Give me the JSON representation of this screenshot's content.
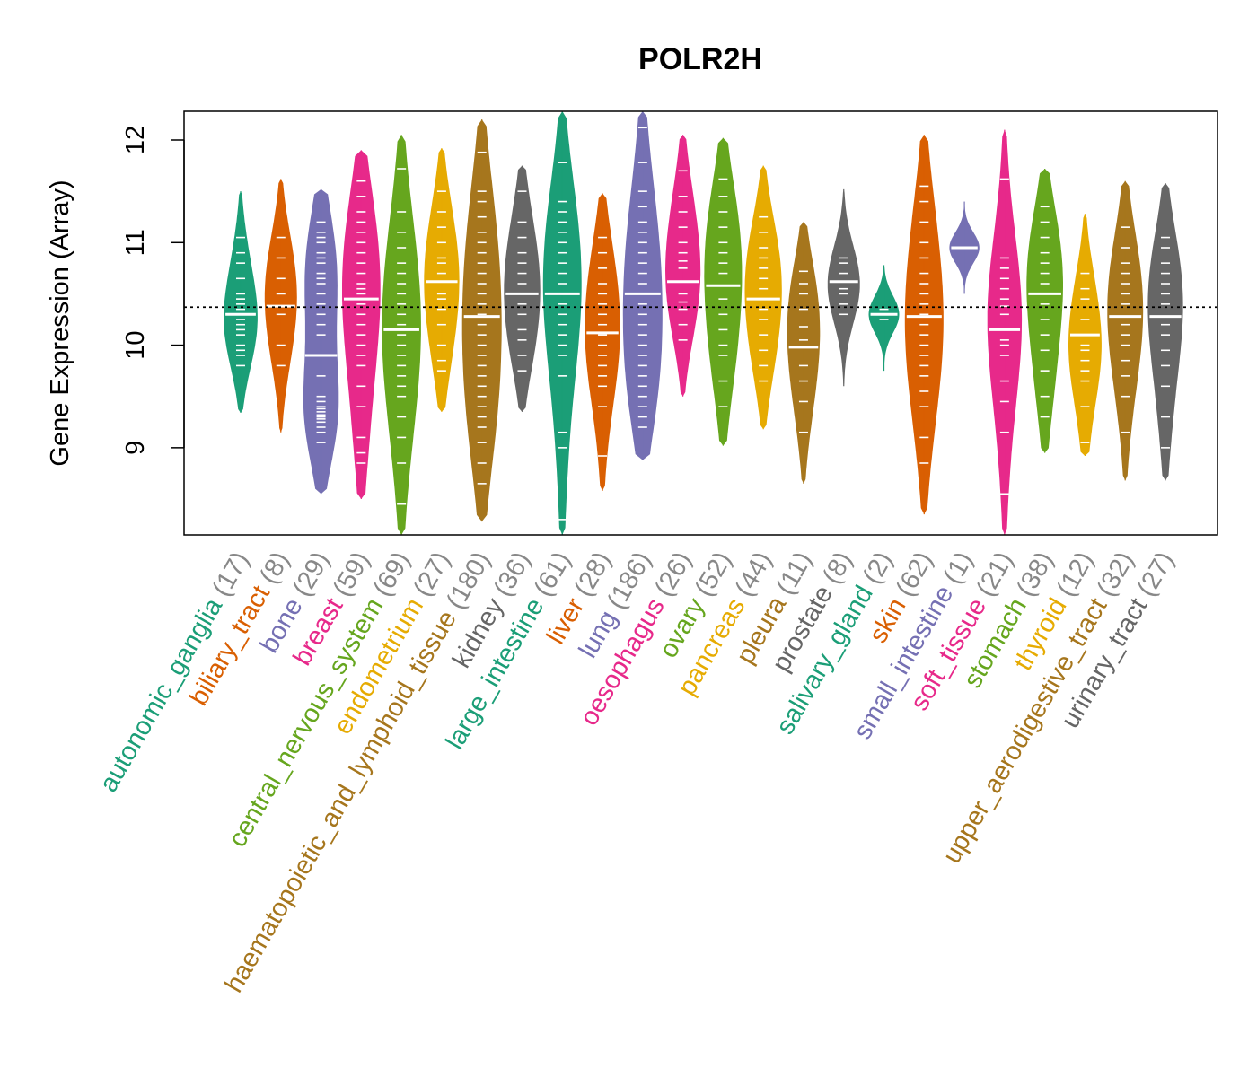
{
  "chart_data": {
    "type": "beanplot",
    "title": "POLR2H",
    "ylabel": "Gene Expression (Array)",
    "xlabel": "",
    "ylim": [
      8.15,
      12.28
    ],
    "yticks": [
      9,
      10,
      11,
      12
    ],
    "reference_line": 10.37,
    "categories": [
      {
        "name": "autonomic_ganglia",
        "n": 17,
        "color": "#1B9E77",
        "label": "autonomic_ganglia (17)",
        "median": 10.3,
        "min": 9.34,
        "max": 11.5,
        "values": [
          9.8,
          9.9,
          10.0,
          10.1,
          10.15,
          10.25,
          10.3,
          10.35,
          10.45,
          10.5,
          10.65,
          10.8,
          10.9,
          11.05,
          9.95,
          10.2,
          10.4
        ]
      },
      {
        "name": "biliary_tract",
        "n": 8,
        "color": "#D95F02",
        "label": "biliary_tract (8)",
        "median": 10.38,
        "min": 9.15,
        "max": 11.62,
        "values": [
          9.8,
          10.0,
          10.3,
          10.5,
          10.65,
          10.85,
          11.05,
          10.38
        ]
      },
      {
        "name": "bone",
        "n": 29,
        "color": "#7570B3",
        "label": "bone (29)",
        "median": 9.9,
        "min": 8.55,
        "max": 11.52,
        "values": [
          9.05,
          9.15,
          9.25,
          9.3,
          9.35,
          9.4,
          9.5,
          9.7,
          9.9,
          10.1,
          10.3,
          10.5,
          10.6,
          10.7,
          10.8,
          10.9,
          11.0,
          11.1,
          9.2,
          9.28,
          9.32,
          9.38,
          9.45,
          10.2,
          10.4,
          10.65,
          10.85,
          11.05,
          11.2
        ]
      },
      {
        "name": "breast",
        "n": 59,
        "color": "#E7298A",
        "label": "breast (59)",
        "median": 10.45,
        "min": 8.5,
        "max": 11.9,
        "values": [
          8.85,
          8.95,
          9.1,
          9.4,
          9.6,
          9.8,
          9.9,
          10.0,
          10.1,
          10.2,
          10.3,
          10.4,
          10.5,
          10.55,
          10.6,
          10.7,
          10.8,
          10.9,
          11.0,
          11.1,
          11.2,
          11.3,
          11.45,
          11.6
        ]
      },
      {
        "name": "central_nervous_system",
        "n": 69,
        "color": "#66A61E",
        "label": "central_nervous_system (69)",
        "median": 10.15,
        "min": 8.15,
        "max": 12.05,
        "values": [
          8.45,
          8.85,
          9.1,
          9.3,
          9.5,
          9.6,
          9.7,
          9.8,
          9.9,
          10.0,
          10.1,
          10.2,
          10.3,
          10.4,
          10.5,
          10.6,
          10.7,
          10.8,
          10.95,
          11.1,
          11.3,
          11.72
        ]
      },
      {
        "name": "endometrium",
        "n": 27,
        "color": "#E6AB02",
        "label": "endometrium (27)",
        "median": 10.62,
        "min": 9.35,
        "max": 11.92,
        "values": [
          9.75,
          9.85,
          10.0,
          10.2,
          10.35,
          10.5,
          10.62,
          10.7,
          10.85,
          11.0,
          11.15,
          11.3,
          11.5,
          10.45,
          10.8
        ]
      },
      {
        "name": "haematopoietic_and_lymphoid_tissue",
        "n": 180,
        "color": "#A6761D",
        "label": "haematopoietic_and_lymphoid_tissue (180)",
        "median": 10.28,
        "min": 8.28,
        "max": 12.2,
        "values": [
          8.65,
          8.85,
          9.05,
          9.2,
          9.3,
          9.4,
          9.5,
          9.6,
          9.7,
          9.8,
          9.9,
          10.0,
          10.1,
          10.2,
          10.3,
          10.4,
          10.5,
          10.6,
          10.7,
          10.8,
          10.9,
          11.0,
          11.1,
          11.25,
          11.4,
          11.5,
          11.88
        ]
      },
      {
        "name": "kidney",
        "n": 36,
        "color": "#666666",
        "label": "kidney (36)",
        "median": 10.5,
        "min": 9.35,
        "max": 11.75,
        "values": [
          9.75,
          9.9,
          10.05,
          10.15,
          10.3,
          10.4,
          10.5,
          10.6,
          10.7,
          10.8,
          10.9,
          11.05,
          11.2,
          11.5
        ]
      },
      {
        "name": "large_intestine",
        "n": 61,
        "color": "#1B9E77",
        "label": "large_intestine (61)",
        "median": 10.5,
        "min": 8.15,
        "max": 12.28,
        "values": [
          8.3,
          9.0,
          9.15,
          9.7,
          9.9,
          10.0,
          10.1,
          10.2,
          10.3,
          10.4,
          10.5,
          10.6,
          10.7,
          10.8,
          10.9,
          11.0,
          11.1,
          11.2,
          11.3,
          11.4,
          11.78
        ]
      },
      {
        "name": "liver",
        "n": 28,
        "color": "#D95F02",
        "label": "liver (28)",
        "median": 10.12,
        "min": 8.58,
        "max": 11.48,
        "values": [
          8.92,
          9.4,
          9.6,
          9.7,
          9.8,
          9.9,
          10.0,
          10.1,
          10.2,
          10.3,
          10.4,
          10.5,
          10.6,
          10.75,
          10.9,
          11.05
        ]
      },
      {
        "name": "lung",
        "n": 186,
        "color": "#7570B3",
        "label": "lung (186)",
        "median": 10.5,
        "min": 8.88,
        "max": 12.28,
        "values": [
          9.2,
          9.3,
          9.4,
          9.5,
          9.6,
          9.7,
          9.8,
          9.9,
          10.0,
          10.1,
          10.2,
          10.3,
          10.4,
          10.5,
          10.6,
          10.7,
          10.8,
          10.9,
          11.0,
          11.1,
          11.2,
          11.35,
          11.5,
          11.78,
          12.12
        ]
      },
      {
        "name": "oesophagus",
        "n": 26,
        "color": "#E7298A",
        "label": "oesophagus (26)",
        "median": 10.62,
        "min": 9.5,
        "max": 12.05,
        "values": [
          10.05,
          10.2,
          10.35,
          10.5,
          10.62,
          10.75,
          10.9,
          11.0,
          11.15,
          11.3,
          11.45,
          11.7,
          10.42,
          10.82
        ]
      },
      {
        "name": "ovary",
        "n": 52,
        "color": "#66A61E",
        "label": "ovary (52)",
        "median": 10.58,
        "min": 9.02,
        "max": 12.02,
        "values": [
          9.4,
          9.65,
          9.9,
          10.0,
          10.15,
          10.3,
          10.45,
          10.58,
          10.7,
          10.8,
          10.9,
          11.0,
          11.15,
          11.3,
          11.45,
          11.62
        ]
      },
      {
        "name": "pancreas",
        "n": 44,
        "color": "#E6AB02",
        "label": "pancreas (44)",
        "median": 10.45,
        "min": 9.18,
        "max": 11.75,
        "values": [
          9.65,
          9.8,
          9.95,
          10.1,
          10.25,
          10.35,
          10.45,
          10.55,
          10.65,
          10.75,
          10.85,
          10.95,
          11.1,
          11.25
        ]
      },
      {
        "name": "pleura",
        "n": 11,
        "color": "#A6761D",
        "label": "pleura (11)",
        "median": 9.98,
        "min": 8.65,
        "max": 11.2,
        "values": [
          9.15,
          9.45,
          9.65,
          9.98,
          10.18,
          10.35,
          10.5,
          10.6,
          10.72,
          9.8,
          10.05
        ]
      },
      {
        "name": "prostate",
        "n": 8,
        "color": "#666666",
        "label": "prostate (8)",
        "median": 10.62,
        "min": 9.6,
        "max": 11.52,
        "values": [
          10.3,
          10.5,
          10.62,
          10.7,
          10.8,
          10.85,
          10.55,
          10.4
        ]
      },
      {
        "name": "salivary_gland",
        "n": 2,
        "color": "#1B9E77",
        "label": "salivary_gland (2)",
        "median": 10.3,
        "min": 9.75,
        "max": 10.78,
        "values": [
          10.25,
          10.35
        ]
      },
      {
        "name": "skin",
        "n": 62,
        "color": "#D95F02",
        "label": "skin (62)",
        "median": 10.28,
        "min": 8.35,
        "max": 12.05,
        "values": [
          8.85,
          9.1,
          9.4,
          9.55,
          9.7,
          9.8,
          9.9,
          10.0,
          10.1,
          10.2,
          10.3,
          10.4,
          10.5,
          10.6,
          10.7,
          10.85,
          11.0,
          11.2,
          11.4,
          11.55
        ]
      },
      {
        "name": "small_intestine",
        "n": 1,
        "color": "#7570B3",
        "label": "small_intestine (1)",
        "median": 10.95,
        "min": 10.5,
        "max": 11.4,
        "values": [
          10.95
        ]
      },
      {
        "name": "soft_tissue",
        "n": 21,
        "color": "#E7298A",
        "label": "soft_tissue (21)",
        "median": 10.15,
        "min": 8.15,
        "max": 12.1,
        "values": [
          8.55,
          9.15,
          9.45,
          9.65,
          9.9,
          10.05,
          10.15,
          10.3,
          10.45,
          10.55,
          10.65,
          10.75,
          10.85,
          11.62,
          10.38,
          10.0
        ]
      },
      {
        "name": "stomach",
        "n": 38,
        "color": "#66A61E",
        "label": "stomach (38)",
        "median": 10.5,
        "min": 8.95,
        "max": 11.72,
        "values": [
          9.3,
          9.5,
          9.75,
          9.95,
          10.1,
          10.25,
          10.4,
          10.5,
          10.6,
          10.7,
          10.8,
          10.9,
          11.05,
          11.2,
          11.35
        ]
      },
      {
        "name": "thyroid",
        "n": 12,
        "color": "#E6AB02",
        "label": "thyroid (12)",
        "median": 10.1,
        "min": 8.92,
        "max": 11.28,
        "values": [
          9.4,
          9.65,
          9.85,
          9.95,
          10.1,
          10.25,
          10.45,
          10.55,
          10.7,
          9.75,
          10.0,
          9.05
        ]
      },
      {
        "name": "upper_aerodigestive_tract",
        "n": 32,
        "color": "#A6761D",
        "label": "upper_aerodigestive_tract (32)",
        "median": 10.28,
        "min": 8.68,
        "max": 11.6,
        "values": [
          9.15,
          9.5,
          9.7,
          9.85,
          10.0,
          10.1,
          10.2,
          10.28,
          10.4,
          10.5,
          10.6,
          10.7,
          10.8,
          10.95,
          11.15
        ]
      },
      {
        "name": "urinary_tract",
        "n": 27,
        "color": "#666666",
        "label": "urinary_tract (27)",
        "median": 10.28,
        "min": 8.68,
        "max": 11.58,
        "values": [
          9.0,
          9.3,
          9.6,
          9.8,
          9.95,
          10.1,
          10.2,
          10.28,
          10.4,
          10.5,
          10.6,
          10.7,
          10.8,
          10.95,
          11.05
        ]
      }
    ]
  }
}
